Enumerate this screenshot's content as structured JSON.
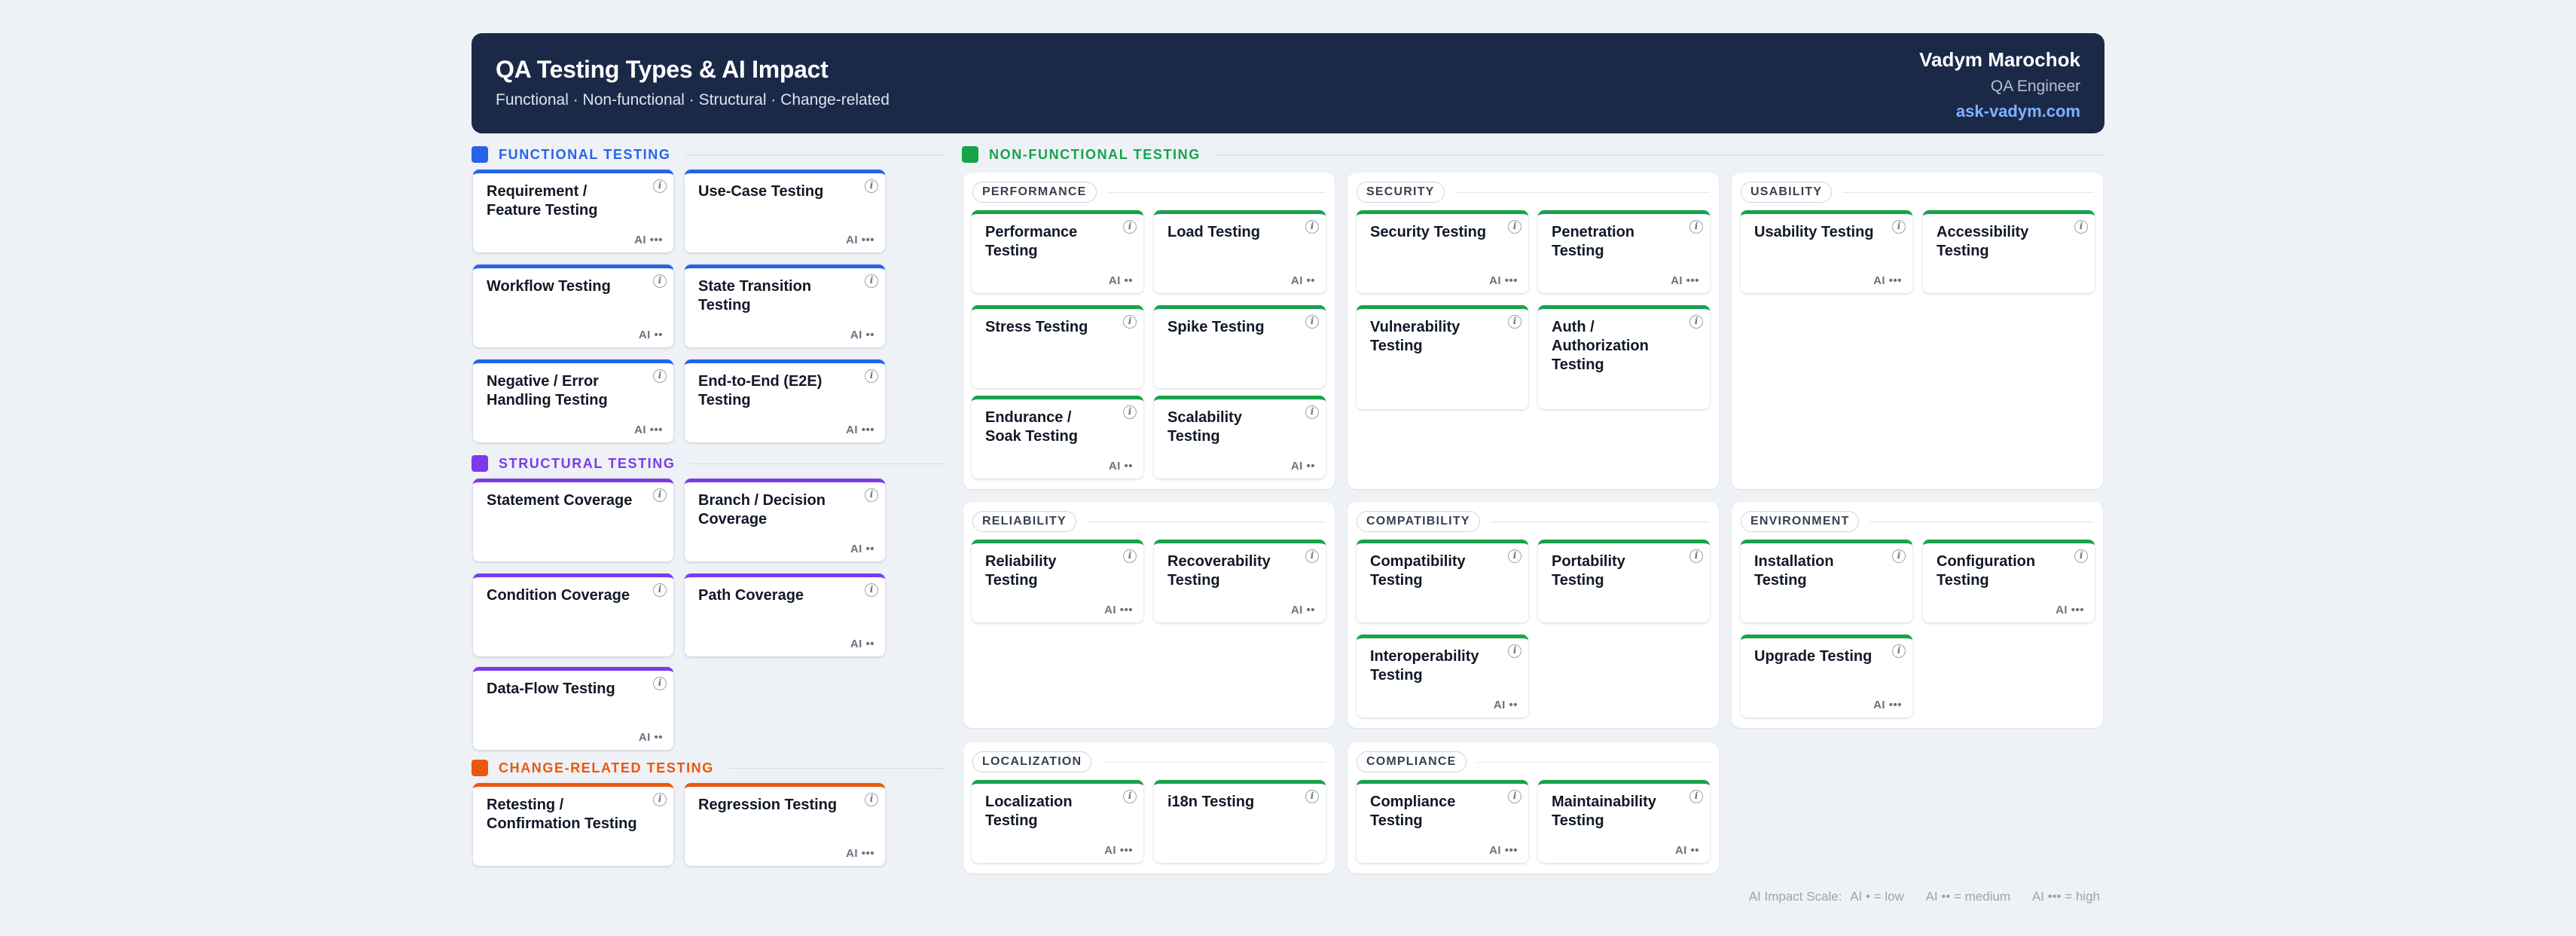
{
  "header": {
    "title": "QA Testing Types & AI Impact",
    "subtitle": "Functional · Non-functional · Structural · Change-related",
    "author_name": "Vadym Marochok",
    "author_role": "QA Engineer",
    "author_site": "ask-vadym.com"
  },
  "colors": {
    "header_bg": "#1b2948",
    "functional": "#2563eb",
    "structural": "#7c3aed",
    "change_related": "#ea580c",
    "non_functional": "#16a34a"
  },
  "icons": {
    "info": "info-icon",
    "ai_impact": "ai-impact-dots"
  },
  "sections": {
    "functional": {
      "label": "FUNCTIONAL TESTING",
      "cards": [
        {
          "name": "Requirement / Feature Testing",
          "ai": "AI •••"
        },
        {
          "name": "Use-Case Testing",
          "ai": "AI •••"
        },
        {
          "name": "Workflow Testing",
          "ai": "AI ••"
        },
        {
          "name": "State Transition Testing",
          "ai": "AI ••"
        },
        {
          "name": "Negative / Error Handling Testing",
          "ai": "AI •••"
        },
        {
          "name": "End-to-End (E2E) Testing",
          "ai": "AI •••"
        }
      ]
    },
    "structural": {
      "label": "STRUCTURAL TESTING",
      "cards": [
        {
          "name": "Statement Coverage",
          "ai": ""
        },
        {
          "name": "Branch / Decision Coverage",
          "ai": "AI ••"
        },
        {
          "name": "Condition Coverage",
          "ai": ""
        },
        {
          "name": "Path Coverage",
          "ai": "AI ••"
        },
        {
          "name": "Data-Flow Testing",
          "ai": "AI ••"
        }
      ]
    },
    "change_related": {
      "label": "CHANGE-RELATED TESTING",
      "cards": [
        {
          "name": "Retesting / Confirmation Testing",
          "ai": ""
        },
        {
          "name": "Regression Testing",
          "ai": "AI •••"
        }
      ]
    },
    "non_functional": {
      "label": "NON-FUNCTIONAL TESTING",
      "groups": {
        "performance": {
          "label": "PERFORMANCE",
          "cards": [
            {
              "name": "Performance Testing",
              "ai": "AI ••"
            },
            {
              "name": "Load Testing",
              "ai": "AI ••"
            },
            {
              "name": "Stress Testing",
              "ai": ""
            },
            {
              "name": "Spike Testing",
              "ai": ""
            },
            {
              "name": "Endurance / Soak Testing",
              "ai": "AI ••"
            },
            {
              "name": "Scalability Testing",
              "ai": "AI ••"
            }
          ]
        },
        "security": {
          "label": "SECURITY",
          "cards": [
            {
              "name": "Security Testing",
              "ai": "AI •••"
            },
            {
              "name": "Penetration Testing",
              "ai": "AI •••"
            },
            {
              "name": "Vulnerability Testing",
              "ai": ""
            },
            {
              "name": "Auth / Authorization Testing",
              "ai": ""
            }
          ]
        },
        "usability": {
          "label": "USABILITY",
          "cards": [
            {
              "name": "Usability Testing",
              "ai": "AI •••"
            },
            {
              "name": "Accessibility Testing",
              "ai": ""
            }
          ]
        },
        "reliability": {
          "label": "RELIABILITY",
          "cards": [
            {
              "name": "Reliability Testing",
              "ai": "AI •••"
            },
            {
              "name": "Recoverability Testing",
              "ai": "AI ••"
            }
          ]
        },
        "compatibility": {
          "label": "COMPATIBILITY",
          "cards": [
            {
              "name": "Compatibility Testing",
              "ai": ""
            },
            {
              "name": "Portability Testing",
              "ai": ""
            },
            {
              "name": "Interoperability Testing",
              "ai": "AI ••"
            }
          ]
        },
        "environment": {
          "label": "ENVIRONMENT",
          "cards": [
            {
              "name": "Installation Testing",
              "ai": ""
            },
            {
              "name": "Configuration Testing",
              "ai": "AI •••"
            },
            {
              "name": "Upgrade Testing",
              "ai": "AI •••"
            }
          ]
        },
        "localization": {
          "label": "LOCALIZATION",
          "cards": [
            {
              "name": "Localization Testing",
              "ai": "AI •••"
            },
            {
              "name": "i18n Testing",
              "ai": ""
            }
          ]
        },
        "compliance": {
          "label": "COMPLIANCE",
          "cards": [
            {
              "name": "Compliance Testing",
              "ai": "AI •••"
            },
            {
              "name": "Maintainability Testing",
              "ai": "AI ••"
            }
          ]
        }
      }
    }
  },
  "legend": {
    "prefix": "AI Impact Scale:",
    "low": "AI • = low",
    "medium": "AI •• = medium",
    "high": "AI ••• = high"
  }
}
